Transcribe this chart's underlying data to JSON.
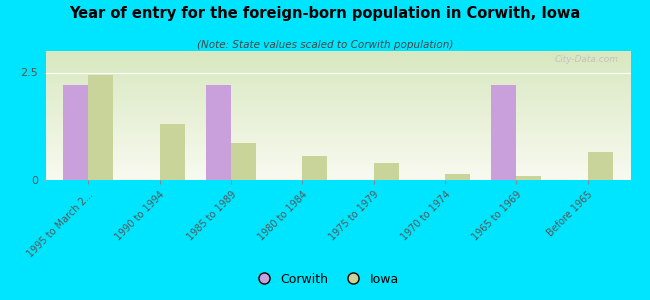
{
  "title": "Year of entry for the foreign-born population in Corwith, Iowa",
  "subtitle": "(Note: State values scaled to Corwith population)",
  "categories": [
    "1995 to March 2...",
    "1990 to 1994",
    "1985 to 1989",
    "1980 to 1984",
    "1975 to 1979",
    "1970 to 1974",
    "1965 to 1969",
    "Before 1965"
  ],
  "corwith_values": [
    2.2,
    0.0,
    2.2,
    0.0,
    0.0,
    0.0,
    2.2,
    0.0
  ],
  "iowa_values": [
    2.45,
    1.3,
    0.85,
    0.55,
    0.4,
    0.15,
    0.1,
    0.65
  ],
  "corwith_color": "#c9a0dc",
  "iowa_color": "#c8d49a",
  "background_color": "#00e5ff",
  "ylim": [
    0,
    3.0
  ],
  "yticks": [
    0,
    2.5
  ],
  "bar_width": 0.35,
  "watermark": "City-Data.com",
  "legend_corwith": "Corwith",
  "legend_iowa": "Iowa"
}
